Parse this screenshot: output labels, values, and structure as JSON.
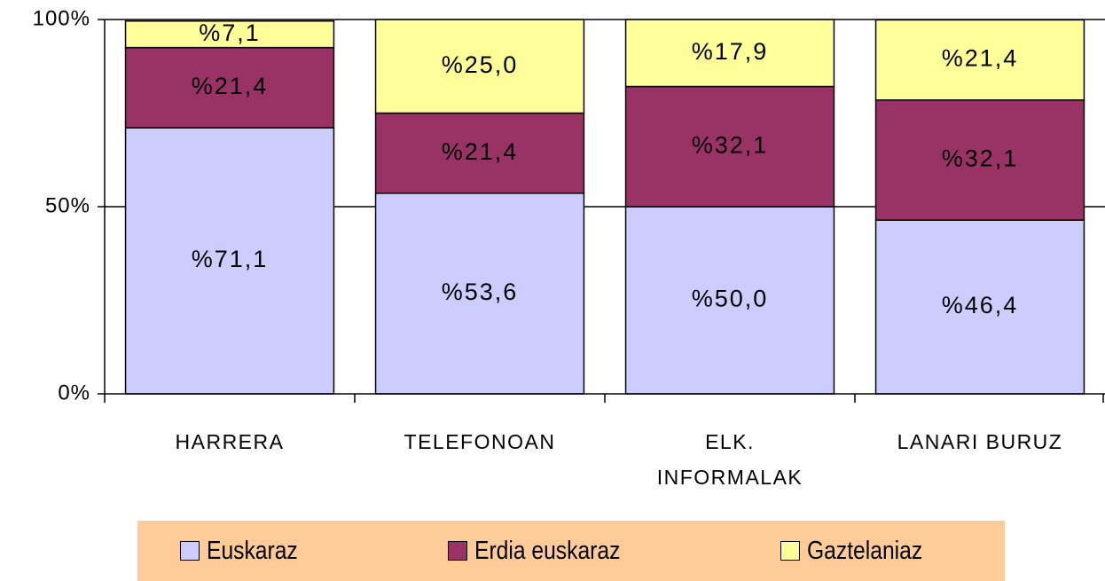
{
  "chart_data": {
    "type": "stacked_bar_100",
    "categories": [
      "HARRERA",
      "TELEFONOAN",
      "ELK.\nINFORMALAK",
      "LANARI BURUZ"
    ],
    "series": [
      {
        "name": "Euskaraz",
        "color": "#ccccff",
        "values": [
          71.1,
          53.6,
          50.0,
          46.4
        ],
        "value_labels": [
          "%71,1",
          "%53,6",
          "%50,0",
          "%46,4"
        ]
      },
      {
        "name": "Erdia euskaraz",
        "color": "#993366",
        "values": [
          21.4,
          21.4,
          32.1,
          32.1
        ],
        "value_labels": [
          "%21,4",
          "%21,4",
          "%32,1",
          "%32,1"
        ]
      },
      {
        "name": "Gaztelaniaz",
        "color": "#ffff99",
        "values": [
          7.1,
          25.0,
          17.9,
          21.4
        ],
        "value_labels": [
          "%7,1",
          "%25,0",
          "%17,9",
          "%21,4"
        ]
      }
    ],
    "ylim": [
      0,
      100
    ],
    "yticks": [
      {
        "value": 0,
        "label": "0%"
      },
      {
        "value": 50,
        "label": "50%"
      },
      {
        "value": 100,
        "label": "100%"
      }
    ],
    "grid": true,
    "legend": "bottom",
    "legend_background": "#ffcc99"
  }
}
